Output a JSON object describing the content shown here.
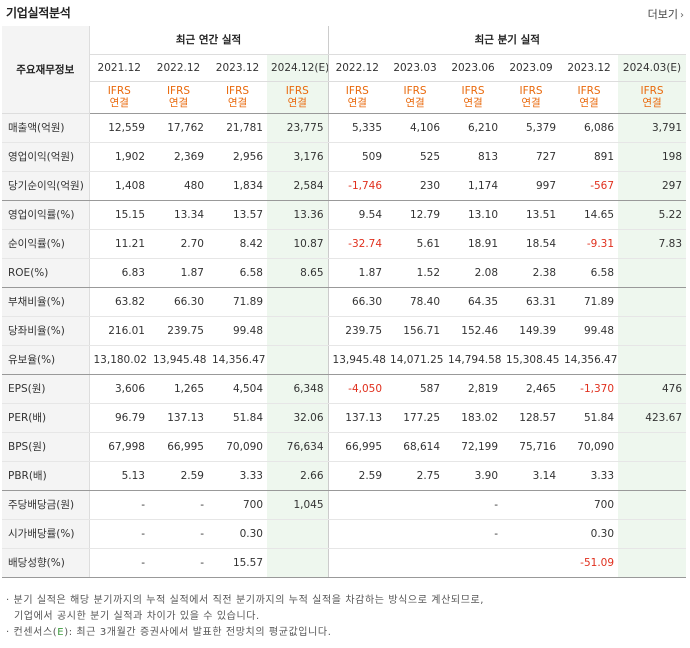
{
  "title": "기업실적분석",
  "more_label": "더보기",
  "corner_label": "주요재무정보",
  "groups": {
    "annual": "최근 연간 실적",
    "quarter": "최근 분기 실적"
  },
  "periods": [
    "2021.12",
    "2022.12",
    "2023.12",
    "2024.12(E)",
    "2022.12",
    "2023.03",
    "2023.06",
    "2023.09",
    "2023.12",
    "2024.03(E)"
  ],
  "basis": "IFRS\n연결",
  "rows": [
    {
      "label": "매출액(억원)",
      "values": [
        "12,559",
        "17,762",
        "21,781",
        "23,775",
        "5,335",
        "4,106",
        "6,210",
        "5,379",
        "6,086",
        "3,791"
      ]
    },
    {
      "label": "영업이익(억원)",
      "values": [
        "1,902",
        "2,369",
        "2,956",
        "3,176",
        "509",
        "525",
        "813",
        "727",
        "891",
        "198"
      ]
    },
    {
      "label": "당기순이익(억원)",
      "values": [
        "1,408",
        "480",
        "1,834",
        "2,584",
        "-1,746",
        "230",
        "1,174",
        "997",
        "-567",
        "297"
      ]
    },
    {
      "label": "영업이익률(%)",
      "values": [
        "15.15",
        "13.34",
        "13.57",
        "13.36",
        "9.54",
        "12.79",
        "13.10",
        "13.51",
        "14.65",
        "5.22"
      ]
    },
    {
      "label": "순이익률(%)",
      "values": [
        "11.21",
        "2.70",
        "8.42",
        "10.87",
        "-32.74",
        "5.61",
        "18.91",
        "18.54",
        "-9.31",
        "7.83"
      ]
    },
    {
      "label": "ROE(%)",
      "values": [
        "6.83",
        "1.87",
        "6.58",
        "8.65",
        "1.87",
        "1.52",
        "2.08",
        "2.38",
        "6.58",
        ""
      ]
    },
    {
      "label": "부채비율(%)",
      "values": [
        "63.82",
        "66.30",
        "71.89",
        "",
        "66.30",
        "78.40",
        "64.35",
        "63.31",
        "71.89",
        ""
      ]
    },
    {
      "label": "당좌비율(%)",
      "values": [
        "216.01",
        "239.75",
        "99.48",
        "",
        "239.75",
        "156.71",
        "152.46",
        "149.39",
        "99.48",
        ""
      ]
    },
    {
      "label": "유보율(%)",
      "values": [
        "13,180.02",
        "13,945.48",
        "14,356.47",
        "",
        "13,945.48",
        "14,071.25",
        "14,794.58",
        "15,308.45",
        "14,356.47",
        ""
      ]
    },
    {
      "label": "EPS(원)",
      "values": [
        "3,606",
        "1,265",
        "4,504",
        "6,348",
        "-4,050",
        "587",
        "2,819",
        "2,465",
        "-1,370",
        "476"
      ]
    },
    {
      "label": "PER(배)",
      "values": [
        "96.79",
        "137.13",
        "51.84",
        "32.06",
        "137.13",
        "177.25",
        "183.02",
        "128.57",
        "51.84",
        "423.67"
      ]
    },
    {
      "label": "BPS(원)",
      "values": [
        "67,998",
        "66,995",
        "70,090",
        "76,634",
        "66,995",
        "68,614",
        "72,199",
        "75,716",
        "70,090",
        ""
      ]
    },
    {
      "label": "PBR(배)",
      "values": [
        "5.13",
        "2.59",
        "3.33",
        "2.66",
        "2.59",
        "2.75",
        "3.90",
        "3.14",
        "3.33",
        ""
      ]
    },
    {
      "label": "주당배당금(원)",
      "values": [
        "-",
        "-",
        "700",
        "1,045",
        "",
        "",
        "-",
        "",
        "700",
        ""
      ]
    },
    {
      "label": "시가배당률(%)",
      "values": [
        "-",
        "-",
        "0.30",
        "",
        "",
        "",
        "-",
        "",
        "0.30",
        ""
      ]
    },
    {
      "label": "배당성향(%)",
      "values": [
        "-",
        "-",
        "15.57",
        "",
        "",
        "",
        "",
        "",
        "-51.09",
        ""
      ]
    }
  ],
  "notes": {
    "line1": "· 분기 실적은 해당 분기까지의 누적 실적에서 직전 분기까지의 누적 실적을 차감하는 방식으로 계산되므로,",
    "line2": "기업에서 공시한 분기 실적과 차이가 있을 수 있습니다.",
    "line3_prefix": "· 컨센서스(",
    "line3_e": "E",
    "line3_suffix": "): 최근 3개월간 증권사에서 발표한 전망치의 평균값입니다."
  },
  "colors": {
    "negative": "#e0301e",
    "ifrs": "#e9690c",
    "estimate_bg": "#eef7ee",
    "label_bg": "#f4f4f4"
  }
}
